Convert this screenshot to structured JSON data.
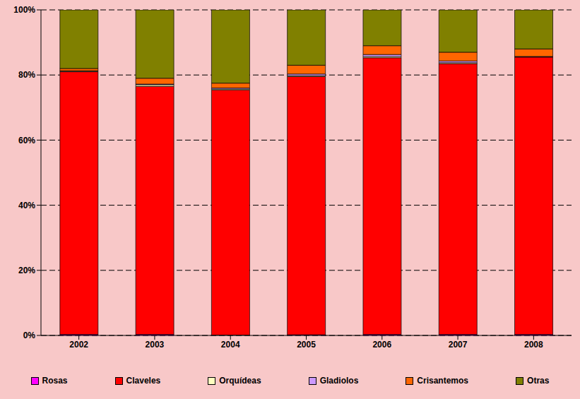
{
  "chart_data": {
    "type": "bar",
    "stacked": true,
    "categories": [
      "2002",
      "2003",
      "2004",
      "2005",
      "2006",
      "2007",
      "2008"
    ],
    "series": [
      {
        "name": "Rosas",
        "color": "#ff00ff",
        "values": [
          0.3,
          0.3,
          0.1,
          0.2,
          0.3,
          0.3,
          0.3
        ]
      },
      {
        "name": "Claveles",
        "color": "#ff0000",
        "values": [
          80.7,
          76.2,
          75.3,
          79.3,
          85.0,
          83.2,
          85.2
        ]
      },
      {
        "name": "Orquídeas",
        "color": "#ffffc0",
        "values": [
          0.2,
          0.5,
          0.3,
          0.3,
          0.4,
          0.3,
          0.1
        ]
      },
      {
        "name": "Gladiolos",
        "color": "#cc99ff",
        "values": [
          0.1,
          0.2,
          0.3,
          0.5,
          0.6,
          0.5,
          0.1
        ]
      },
      {
        "name": "Crisantemos",
        "color": "#ff6600",
        "values": [
          0.7,
          1.8,
          1.5,
          2.7,
          2.7,
          2.7,
          2.3
        ]
      },
      {
        "name": "Otras",
        "color": "#808000",
        "values": [
          18.0,
          21.0,
          22.5,
          17.0,
          11.0,
          13.0,
          12.0
        ]
      }
    ],
    "ylim": [
      0,
      100
    ],
    "yticks": [
      {
        "value": 0,
        "label": "0%"
      },
      {
        "value": 20,
        "label": "20%"
      },
      {
        "value": 40,
        "label": "40%"
      },
      {
        "value": 60,
        "label": "60%"
      },
      {
        "value": 80,
        "label": "80%"
      },
      {
        "value": 100,
        "label": "100%"
      }
    ],
    "grid": true,
    "legend": "bottom"
  }
}
